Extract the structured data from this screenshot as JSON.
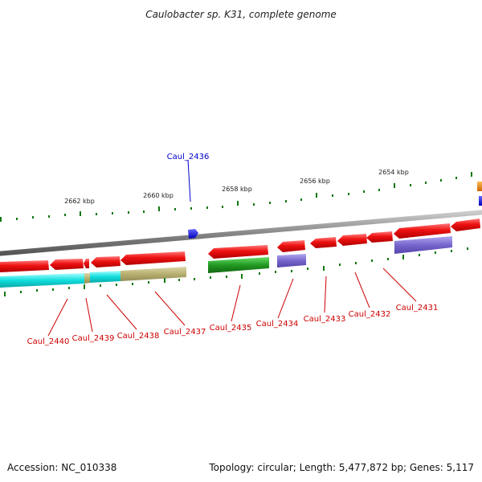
{
  "title": "Caulobacter sp. K31, complete genome",
  "footer": {
    "accession": "Accession: NC_010338",
    "summary": "Topology: circular; Length: 5,477,872 bp; Genes: 5,117"
  },
  "colors": {
    "backbone": "#888888",
    "gene_red": "#ee1111",
    "gene_blue": "#1111dd",
    "gene_orange": "#ee8800",
    "ticks": "#117711",
    "label_red": "#cc0000",
    "label_blue": "#0000cc",
    "cyan": "#11dddd",
    "khaki": "#b8b070",
    "green": "#229922",
    "purple": "#7766cc"
  },
  "kbp_labels": [
    "2662 kbp",
    "2660 kbp",
    "2658 kbp",
    "2656 kbp",
    "2654 kbp"
  ],
  "gene_labels": [
    {
      "text": "Caul_2436",
      "color": "blue"
    },
    {
      "text": "Caul_2440",
      "color": "red"
    },
    {
      "text": "Caul_2439",
      "color": "red"
    },
    {
      "text": "Caul_2438",
      "color": "red"
    },
    {
      "text": "Caul_2437",
      "color": "red"
    },
    {
      "text": "Caul_2435",
      "color": "red"
    },
    {
      "text": "Caul_2434",
      "color": "red"
    },
    {
      "text": "Caul_2433",
      "color": "red"
    },
    {
      "text": "Caul_2432",
      "color": "red"
    },
    {
      "text": "Caul_2431",
      "color": "red"
    }
  ]
}
